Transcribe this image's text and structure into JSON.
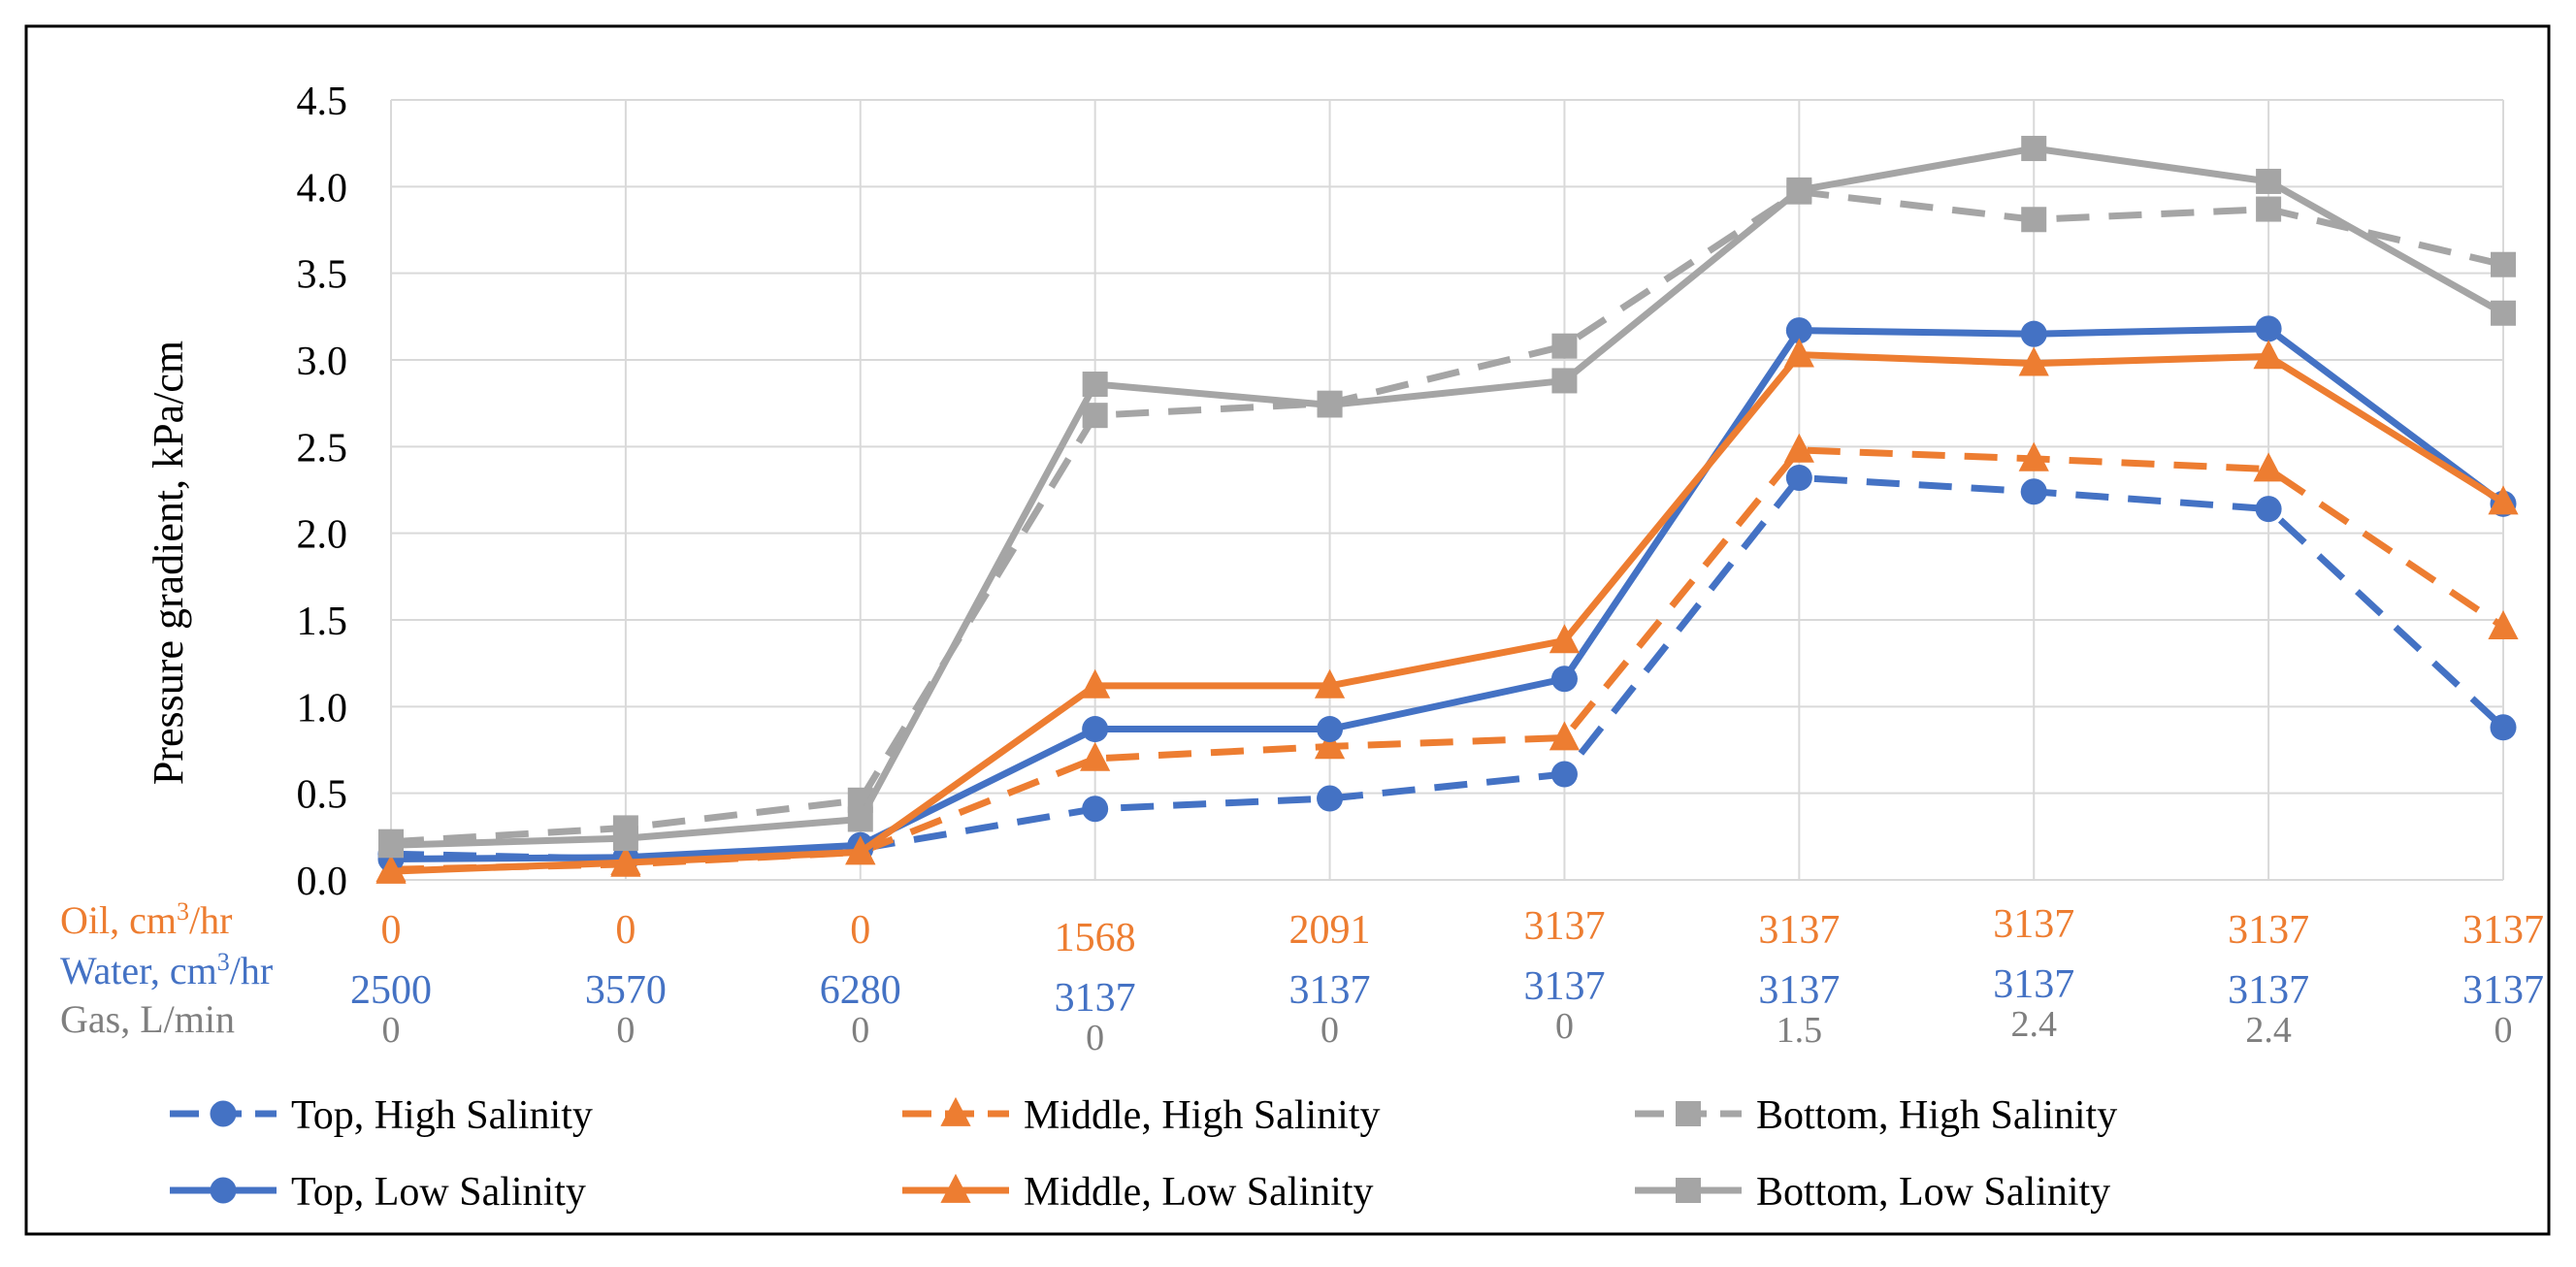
{
  "chart_data": {
    "type": "line",
    "ylabel": "Pressure gradient, kPa/cm",
    "ylim": [
      0,
      4.5
    ],
    "yticks": [
      "0.0",
      "0.5",
      "1.0",
      "1.5",
      "2.0",
      "2.5",
      "3.0",
      "3.5",
      "4.0",
      "4.5"
    ],
    "grid": true,
    "legend_position": "bottom",
    "category_rows": [
      {
        "label_main": "Oil, cm",
        "label_sup": "3",
        "label_tail": "/hr",
        "color": "#ED7D31",
        "values": [
          "0",
          "0",
          "0",
          "1568",
          "2091",
          "3137",
          "3137",
          "3137",
          "3137",
          "3137"
        ]
      },
      {
        "label_main": "Water, cm",
        "label_sup": "3",
        "label_tail": "/hr",
        "color": "#4472C4",
        "values": [
          "2500",
          "3570",
          "6280",
          "3137",
          "3137",
          "3137",
          "3137",
          "3137",
          "3137",
          "3137"
        ]
      },
      {
        "label_main": "Gas, L/min",
        "label_sup": "",
        "label_tail": "",
        "color": "#7F7F7F",
        "values": [
          "0",
          "0",
          "0",
          "0",
          "0",
          "0",
          "1.5",
          "2.4",
          "2.4",
          "0"
        ]
      }
    ],
    "series": [
      {
        "name": "Top, High Salinity",
        "color": "#4472C4",
        "dash": true,
        "marker": "circle",
        "values": [
          0.15,
          0.12,
          0.18,
          0.41,
          0.47,
          0.61,
          2.32,
          2.24,
          2.14,
          0.88
        ]
      },
      {
        "name": "Middle, High Salinity",
        "color": "#ED7D31",
        "dash": true,
        "marker": "triangle",
        "values": [
          0.06,
          0.09,
          0.16,
          0.7,
          0.77,
          0.82,
          2.48,
          2.43,
          2.37,
          1.46
        ]
      },
      {
        "name": "Bottom, High Salinity",
        "color": "#A5A5A5",
        "dash": true,
        "marker": "square",
        "values": [
          0.22,
          0.3,
          0.46,
          2.68,
          2.75,
          3.08,
          3.97,
          3.81,
          3.87,
          3.55
        ]
      },
      {
        "name": "Top, Low Salinity",
        "color": "#4472C4",
        "dash": false,
        "marker": "circle",
        "values": [
          0.12,
          0.13,
          0.2,
          0.87,
          0.87,
          1.16,
          3.17,
          3.15,
          3.18,
          2.17
        ]
      },
      {
        "name": "Middle, Low Salinity",
        "color": "#ED7D31",
        "dash": false,
        "marker": "triangle",
        "values": [
          0.05,
          0.1,
          0.16,
          1.12,
          1.12,
          1.38,
          3.03,
          2.98,
          3.02,
          2.18
        ]
      },
      {
        "name": "Bottom, Low Salinity",
        "color": "#A5A5A5",
        "dash": false,
        "marker": "square",
        "values": [
          0.2,
          0.24,
          0.35,
          2.86,
          2.74,
          2.88,
          3.98,
          4.22,
          4.03,
          3.27
        ]
      }
    ]
  }
}
